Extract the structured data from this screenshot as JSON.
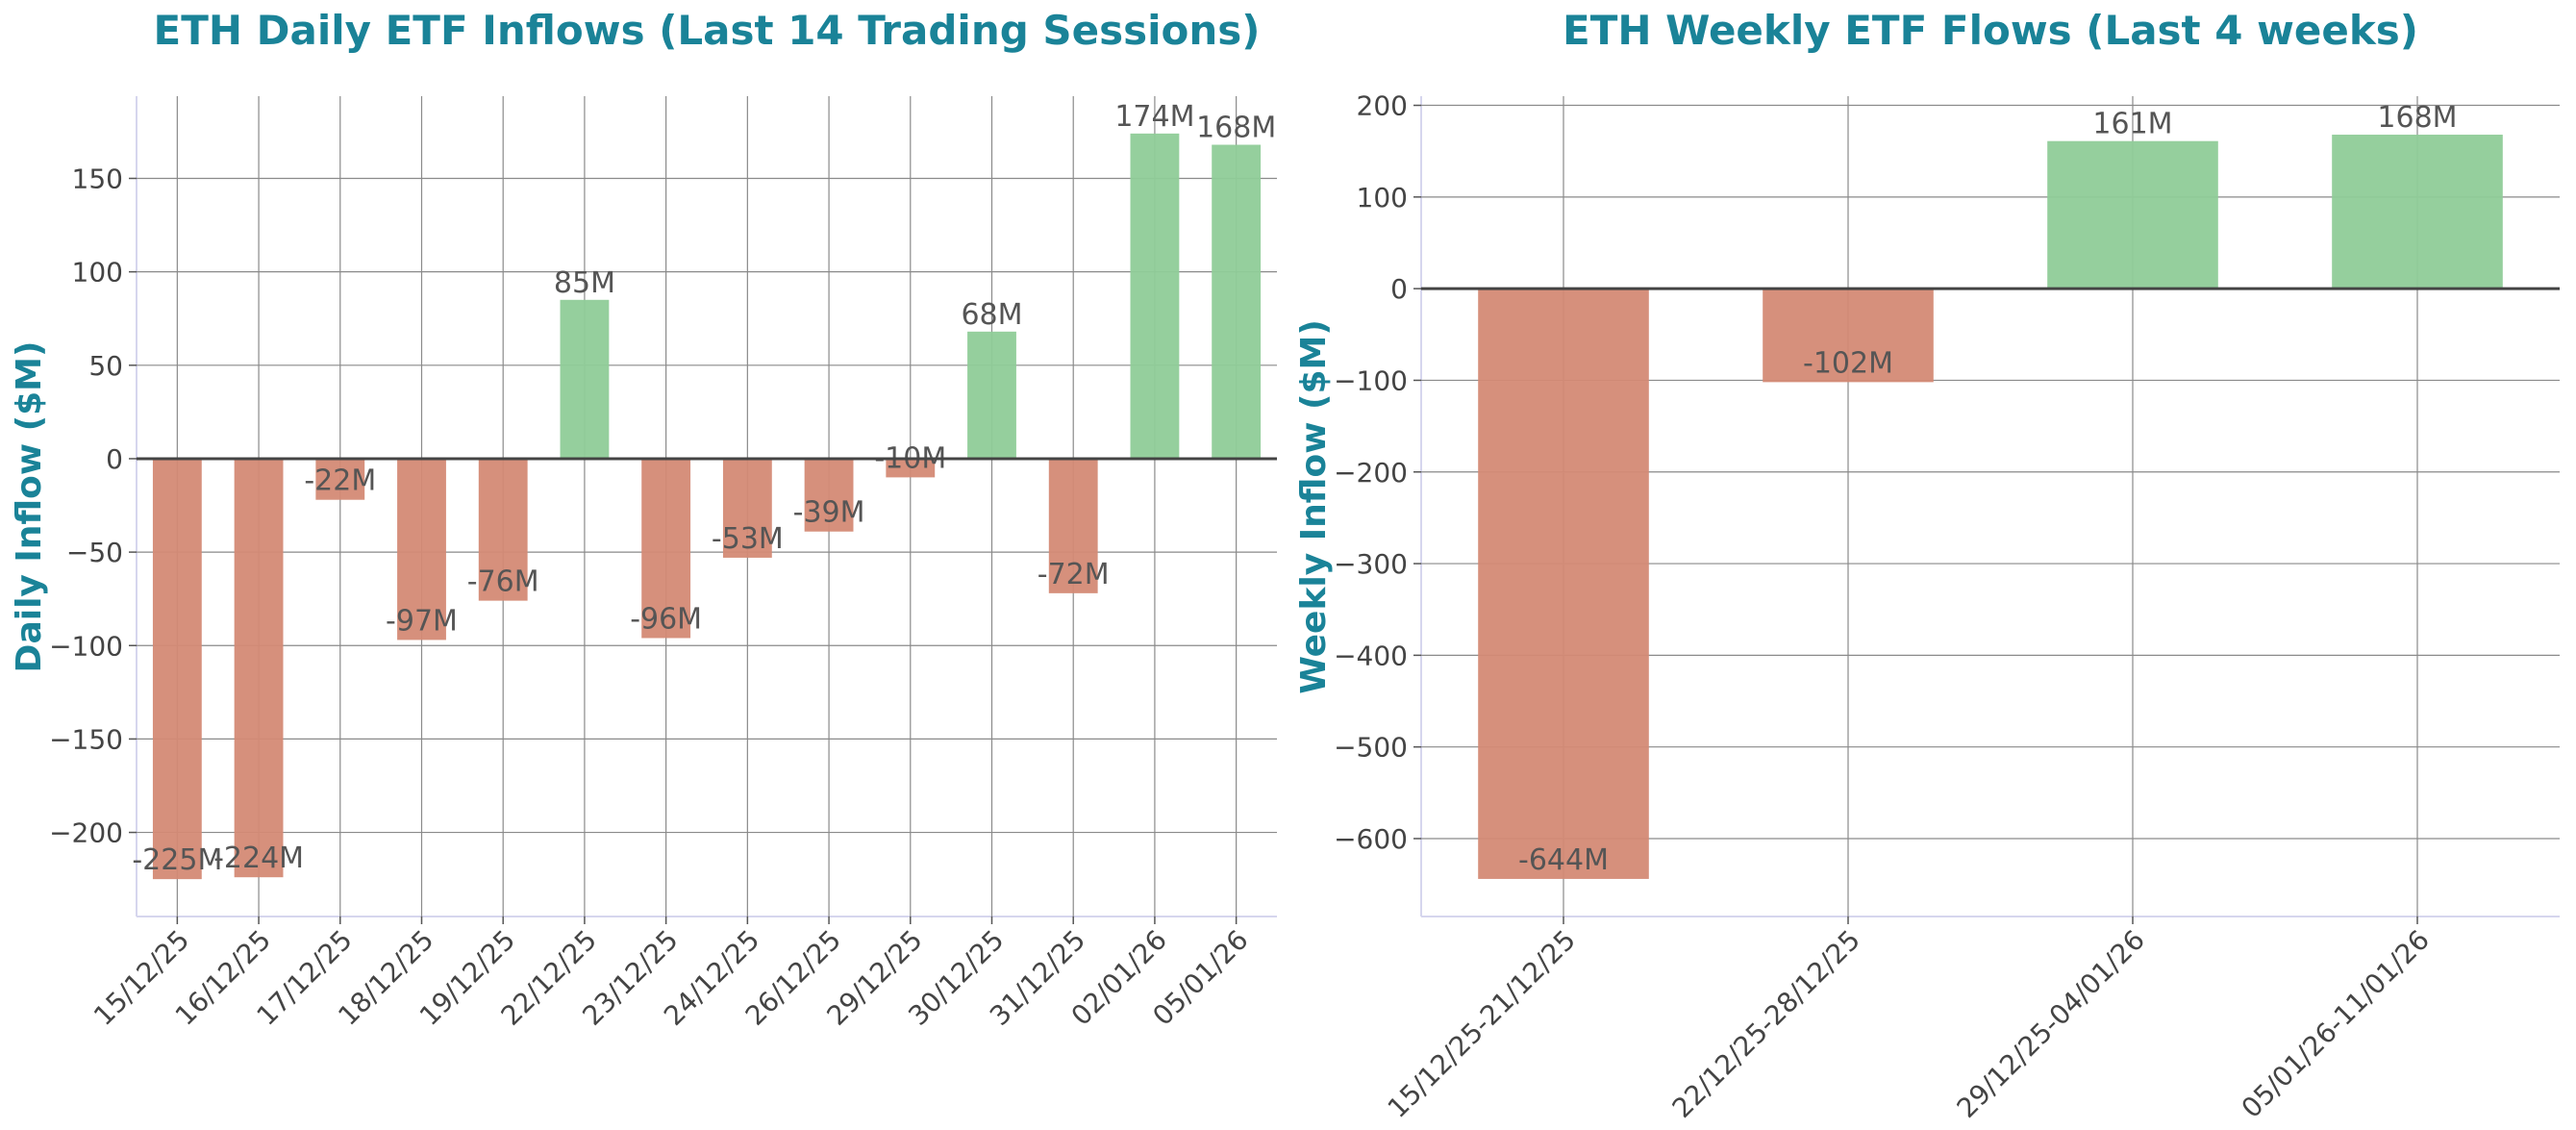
{
  "colors": {
    "positive": "#8fcc98",
    "negative": "#d48a75",
    "title": "#1a8398",
    "grid": "#808080",
    "zero_line": "#444444"
  },
  "chart_data": [
    {
      "type": "bar",
      "title": "ETH Daily ETF Inflows (Last 14 Trading Sessions)",
      "xlabel": "",
      "ylabel": "Daily Inflow ($M)",
      "categories": [
        "15/12/25",
        "16/12/25",
        "17/12/25",
        "18/12/25",
        "19/12/25",
        "22/12/25",
        "23/12/25",
        "24/12/25",
        "26/12/25",
        "29/12/25",
        "30/12/25",
        "31/12/25",
        "02/01/26",
        "05/01/26"
      ],
      "values": [
        -225,
        -224,
        -22,
        -97,
        -76,
        85,
        -96,
        -53,
        -39,
        -10,
        68,
        -72,
        174,
        168
      ],
      "data_labels": [
        "-225M",
        "-224M",
        "-22M",
        "-97M",
        "-76M",
        "85M",
        "-96M",
        "-53M",
        "-39M",
        "-10M",
        "68M",
        "-72M",
        "174M",
        "168M"
      ],
      "ylim": [
        -245,
        194
      ],
      "yticks": [
        -200,
        -150,
        -100,
        -50,
        0,
        50,
        100,
        150
      ],
      "ytick_labels": [
        "−200",
        "−150",
        "−100",
        "−50",
        "0",
        "50",
        "100",
        "150"
      ],
      "grid": true,
      "tick_rotation": 45
    },
    {
      "type": "bar",
      "title": "ETH Weekly ETF Flows (Last 4 weeks)",
      "xlabel": "",
      "ylabel": "Weekly Inflow ($M)",
      "categories": [
        "15/12/25-21/12/25",
        "22/12/25-28/12/25",
        "29/12/25-04/01/26",
        "05/01/26-11/01/26"
      ],
      "values": [
        -644,
        -102,
        161,
        168
      ],
      "data_labels": [
        "-644M",
        "-102M",
        "161M",
        "168M"
      ],
      "ylim": [
        -685,
        210
      ],
      "yticks": [
        -600,
        -500,
        -400,
        -300,
        -200,
        -100,
        0,
        100,
        200
      ],
      "ytick_labels": [
        "−600",
        "−500",
        "−400",
        "−300",
        "−200",
        "−100",
        "0",
        "100",
        "200"
      ],
      "grid": true,
      "tick_rotation": 45
    }
  ]
}
